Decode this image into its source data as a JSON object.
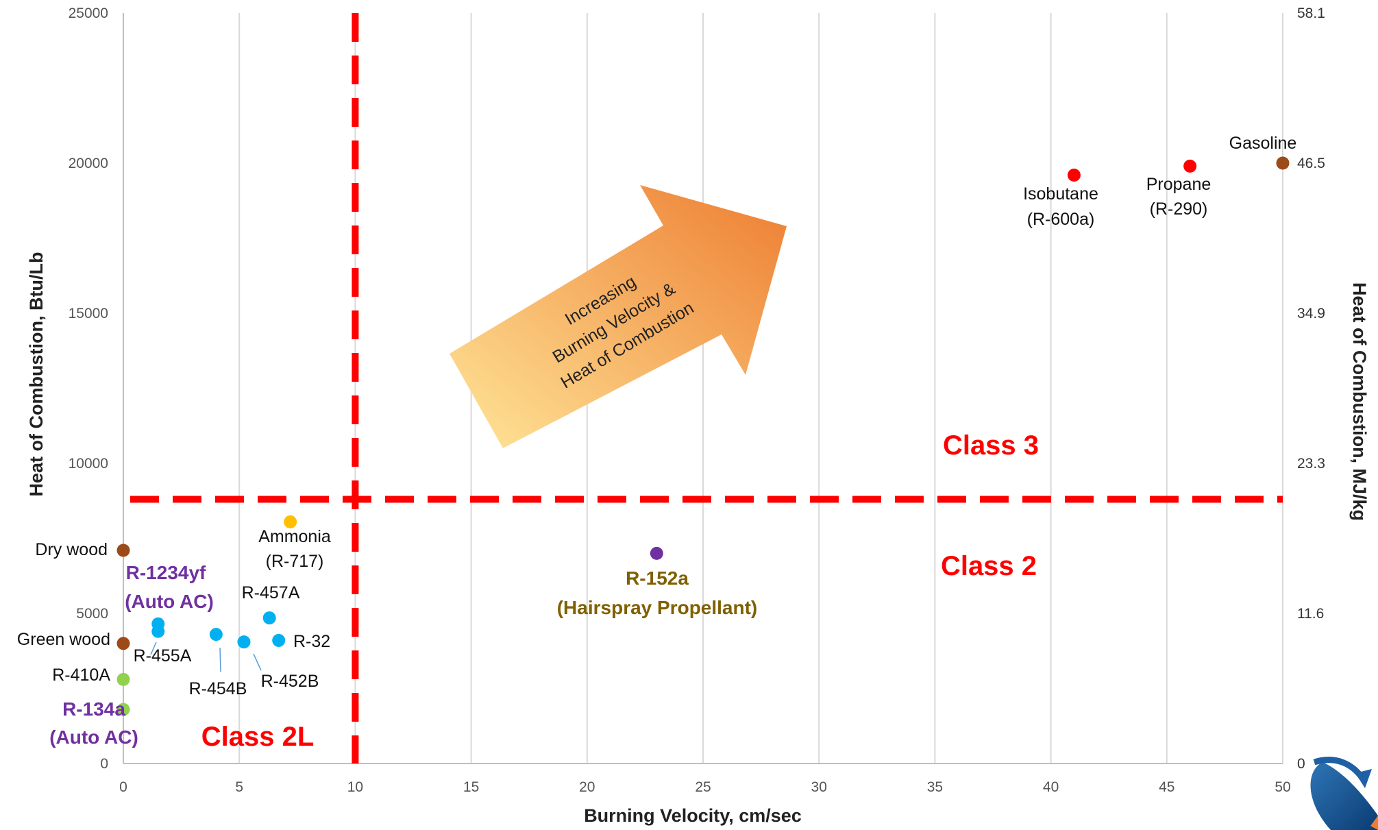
{
  "chart_data": {
    "type": "scatter",
    "title": "",
    "xlabel": "Burning Velocity, cm/sec",
    "ylabel": "Heat of Combustion, Btu/Lb",
    "y2label": "Heat of Combustion, MJ/kg",
    "xlim": [
      0,
      50
    ],
    "ylim": [
      0,
      25000
    ],
    "x_ticks": [
      0,
      5,
      10,
      15,
      20,
      25,
      30,
      35,
      40,
      45,
      50
    ],
    "y_ticks": [
      0,
      5000,
      10000,
      15000,
      20000,
      25000
    ],
    "y2_ticks": [
      {
        "label": "0",
        "y": 0
      },
      {
        "label": "11.6",
        "y": 5000
      },
      {
        "label": "23.3",
        "y": 10000
      },
      {
        "label": "34.9",
        "y": 15000
      },
      {
        "label": "46.5",
        "y": 20000
      },
      {
        "label": "58.1",
        "y": 25000
      }
    ],
    "grid": "vertical",
    "colors": {
      "wood": "#9C4A17",
      "hfc_green": "#92D050",
      "hfo_blue": "#00B0F0",
      "ammonia": "#FFC000",
      "r152a": "#7030A0",
      "hydrocarbon": "#FF0000",
      "class_line": "#FF0000",
      "purple_label": "#7030A0",
      "olive_label": "#7F6000",
      "class_text": "#FF0000",
      "arrow_start": "#FFE699",
      "arrow_end": "#ED7D31"
    },
    "points": [
      {
        "name": "Dry wood",
        "x": 0,
        "y": 7100,
        "color": "#9C4A17"
      },
      {
        "name": "Green wood",
        "x": 0,
        "y": 4000,
        "color": "#9C4A17"
      },
      {
        "name": "R-410A",
        "x": 0,
        "y": 2800,
        "color": "#92D050"
      },
      {
        "name": "R-134a",
        "x": 0,
        "y": 1800,
        "color": "#92D050"
      },
      {
        "name": "R-1234yf",
        "x": 1.5,
        "y": 4400,
        "color": "#00B0F0"
      },
      {
        "name": "R-455A",
        "x": 1.5,
        "y": 4650,
        "color": "#00B0F0"
      },
      {
        "name": "R-454B",
        "x": 4.0,
        "y": 4300,
        "color": "#00B0F0"
      },
      {
        "name": "R-452B",
        "x": 5.2,
        "y": 4050,
        "color": "#00B0F0"
      },
      {
        "name": "R-457A",
        "x": 6.3,
        "y": 4850,
        "color": "#00B0F0"
      },
      {
        "name": "R-32",
        "x": 6.7,
        "y": 4100,
        "color": "#00B0F0"
      },
      {
        "name": "Ammonia",
        "x": 7.2,
        "y": 8050,
        "color": "#FFC000"
      },
      {
        "name": "R-152a",
        "x": 23,
        "y": 7000,
        "color": "#7030A0"
      },
      {
        "name": "Isobutane",
        "x": 41,
        "y": 19600,
        "color": "#FF0000"
      },
      {
        "name": "Propane",
        "x": 46,
        "y": 19900,
        "color": "#FF0000"
      },
      {
        "name": "Gasoline",
        "x": 50,
        "y": 20000,
        "color": "#9C4A17"
      }
    ],
    "threshold_lines": [
      {
        "orientation": "vertical",
        "x": 10
      },
      {
        "orientation": "horizontal",
        "y": 8800
      }
    ],
    "regions": [
      "Class 2L",
      "Class 2",
      "Class 3"
    ],
    "annotations": {
      "dry_wood": "Dry wood",
      "green_wood": "Green wood",
      "r410a": "R-410A",
      "r134a_1": "R-134a",
      "r134a_2": "(Auto AC)",
      "r1234yf_1": "R-1234yf",
      "r1234yf_2": "(Auto AC)",
      "r455a": "R-455A",
      "r454b": "R-454B",
      "r452b": "R-452B",
      "r457a": "R-457A",
      "r32": "R-32",
      "ammonia_1": "Ammonia",
      "ammonia_2": "(R-717)",
      "r152a_1": "R-152a",
      "r152a_2": "(Hairspray Propellant)",
      "isobutane_1": "Isobutane",
      "isobutane_2": "(R-600a)",
      "propane_1": "Propane",
      "propane_2": "(R-290)",
      "gasoline": "Gasoline",
      "class_2l": "Class 2L",
      "class_2": "Class 2",
      "class_3": "Class 3",
      "arrow_line1": "Increasing",
      "arrow_line2": "Burning Velocity &",
      "arrow_line3": "Heat of Combustion"
    }
  }
}
